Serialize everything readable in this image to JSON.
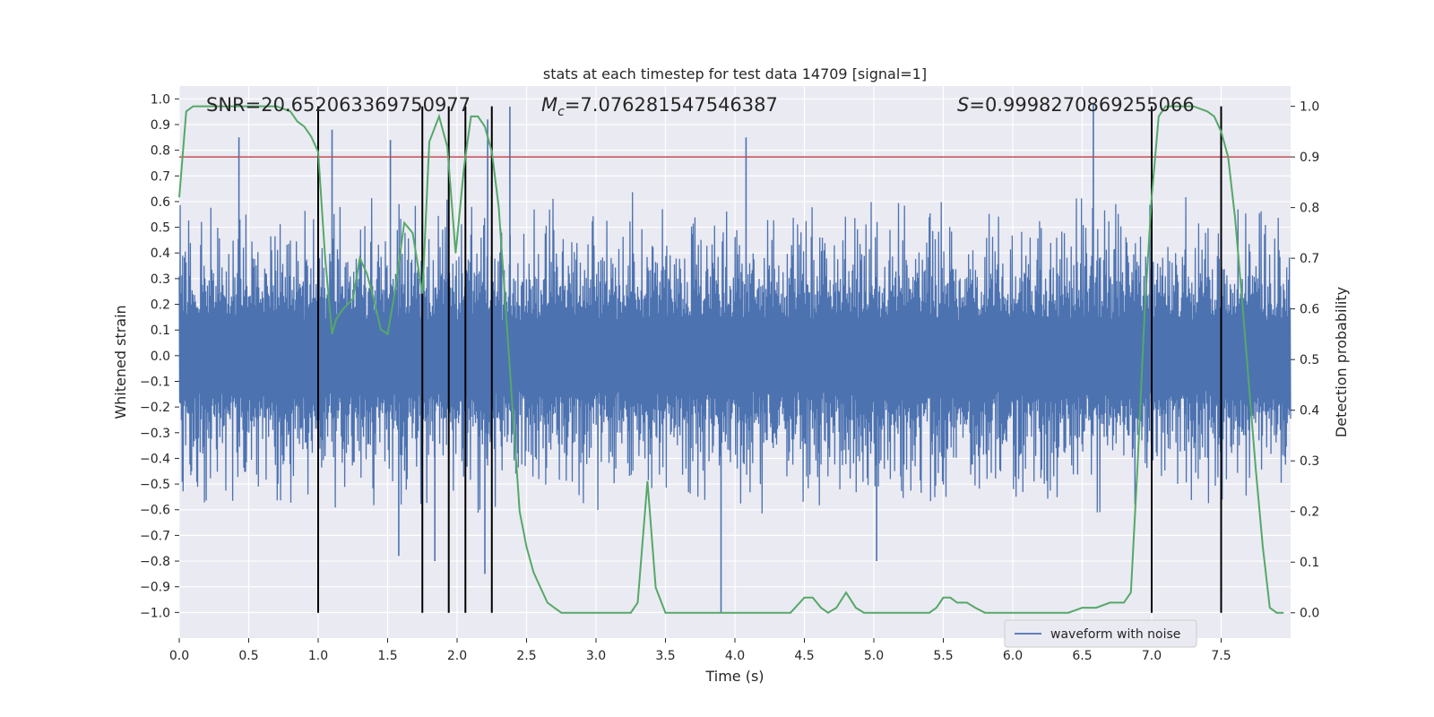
{
  "chart_data": {
    "type": "line",
    "title": "stats at each timestep for test data 14709 [signal=1]",
    "xlabel": "Time (s)",
    "ylabel_left": "Whitened strain",
    "ylabel_right": "Detection probability",
    "xlim": [
      0.0,
      8.0
    ],
    "ylim_left": [
      -1.1,
      1.05
    ],
    "ylim_right": [
      -0.05,
      1.04
    ],
    "xticks": [
      "0.0",
      "0.5",
      "1.0",
      "1.5",
      "2.0",
      "2.5",
      "3.0",
      "3.5",
      "4.0",
      "4.5",
      "5.0",
      "5.5",
      "6.0",
      "6.5",
      "7.0",
      "7.5"
    ],
    "yticks_left": [
      "1.0",
      "0.9",
      "0.8",
      "0.7",
      "0.6",
      "0.5",
      "0.4",
      "0.3",
      "0.2",
      "0.1",
      "0.0",
      "−0.1",
      "−0.2",
      "−0.3",
      "−0.4",
      "−0.5",
      "−0.6",
      "−0.7",
      "−0.8",
      "−0.9",
      "−1.0"
    ],
    "yticks_right": [
      "1.0",
      "0.9",
      "0.8",
      "0.7",
      "0.6",
      "0.5",
      "0.4",
      "0.3",
      "0.2",
      "0.1",
      "0.0"
    ],
    "grid": true,
    "legend": {
      "position": "lower-right",
      "entries": [
        "waveform with noise"
      ]
    },
    "annotations": {
      "snr": "SNR=20.652063369750977",
      "mc_symbol": "M",
      "mc_sub": "c",
      "mc_value": "=7.076281547546387",
      "s_symbol": "S",
      "s_value": "=0.9998270869255066"
    },
    "threshold": {
      "value": 0.9,
      "axis": "right"
    },
    "vlines": [
      1.0,
      1.75,
      1.94,
      2.06,
      2.25,
      7.0,
      7.5
    ],
    "waveform": {
      "name": "waveform with noise",
      "note": "whitened noisy strain sampled densely over 0-8 s; envelope approx +/-0.6",
      "spikes": [
        [
          0.43,
          0.85
        ],
        [
          1.1,
          0.88
        ],
        [
          1.0,
          -0.82
        ],
        [
          1.52,
          0.84
        ],
        [
          1.58,
          -0.78
        ],
        [
          1.84,
          -0.8
        ],
        [
          2.2,
          -0.85
        ],
        [
          2.22,
          0.92
        ],
        [
          2.38,
          0.97
        ],
        [
          3.9,
          -1.0
        ],
        [
          4.08,
          0.85
        ],
        [
          5.02,
          -0.8
        ],
        [
          6.58,
          0.98
        ]
      ]
    },
    "series": [
      {
        "name": "detection probability",
        "axis": "right",
        "x": [
          0.0,
          0.05,
          0.1,
          0.2,
          0.3,
          0.5,
          0.7,
          0.8,
          0.85,
          0.9,
          0.95,
          1.0,
          1.05,
          1.1,
          1.13,
          1.18,
          1.25,
          1.3,
          1.35,
          1.4,
          1.45,
          1.5,
          1.55,
          1.62,
          1.68,
          1.75,
          1.8,
          1.87,
          1.93,
          1.99,
          2.05,
          2.1,
          2.15,
          2.2,
          2.25,
          2.3,
          2.35,
          2.4,
          2.45,
          2.5,
          2.55,
          2.6,
          2.65,
          2.7,
          2.75,
          2.8,
          2.9,
          3.0,
          3.1,
          3.2,
          3.25,
          3.3,
          3.37,
          3.43,
          3.5,
          3.6,
          3.7,
          3.8,
          3.9,
          4.0,
          4.1,
          4.2,
          4.3,
          4.4,
          4.5,
          4.56,
          4.62,
          4.67,
          4.73,
          4.8,
          4.87,
          4.93,
          5.0,
          5.1,
          5.2,
          5.3,
          5.4,
          5.45,
          5.5,
          5.55,
          5.6,
          5.67,
          5.73,
          5.8,
          5.9,
          6.0,
          6.1,
          6.2,
          6.3,
          6.4,
          6.5,
          6.6,
          6.7,
          6.75,
          6.8,
          6.85,
          6.9,
          6.95,
          7.0,
          7.05,
          7.1,
          7.2,
          7.3,
          7.4,
          7.45,
          7.5,
          7.55,
          7.6,
          7.65,
          7.7,
          7.75,
          7.8,
          7.85,
          7.9,
          7.95
        ],
        "y": [
          0.82,
          0.99,
          1.0,
          1.0,
          1.0,
          1.0,
          1.0,
          0.99,
          0.97,
          0.96,
          0.94,
          0.91,
          0.7,
          0.55,
          0.58,
          0.6,
          0.62,
          0.7,
          0.67,
          0.62,
          0.56,
          0.55,
          0.63,
          0.77,
          0.75,
          0.63,
          0.93,
          0.98,
          0.92,
          0.71,
          0.88,
          0.98,
          0.98,
          0.96,
          0.91,
          0.8,
          0.6,
          0.4,
          0.2,
          0.13,
          0.08,
          0.05,
          0.02,
          0.01,
          0.0,
          0.0,
          0.0,
          0.0,
          0.0,
          0.0,
          0.0,
          0.02,
          0.26,
          0.05,
          0.0,
          0.0,
          0.0,
          0.0,
          0.0,
          0.0,
          0.0,
          0.0,
          0.0,
          0.0,
          0.03,
          0.03,
          0.01,
          0.0,
          0.01,
          0.04,
          0.01,
          0.0,
          0.0,
          0.0,
          0.0,
          0.0,
          0.0,
          0.01,
          0.03,
          0.03,
          0.02,
          0.02,
          0.01,
          0.0,
          0.0,
          0.0,
          0.0,
          0.0,
          0.0,
          0.0,
          0.01,
          0.01,
          0.02,
          0.02,
          0.02,
          0.04,
          0.3,
          0.6,
          0.82,
          0.98,
          1.0,
          1.0,
          1.0,
          0.99,
          0.98,
          0.95,
          0.9,
          0.78,
          0.62,
          0.45,
          0.28,
          0.13,
          0.01,
          0.0,
          0.0
        ]
      }
    ]
  }
}
